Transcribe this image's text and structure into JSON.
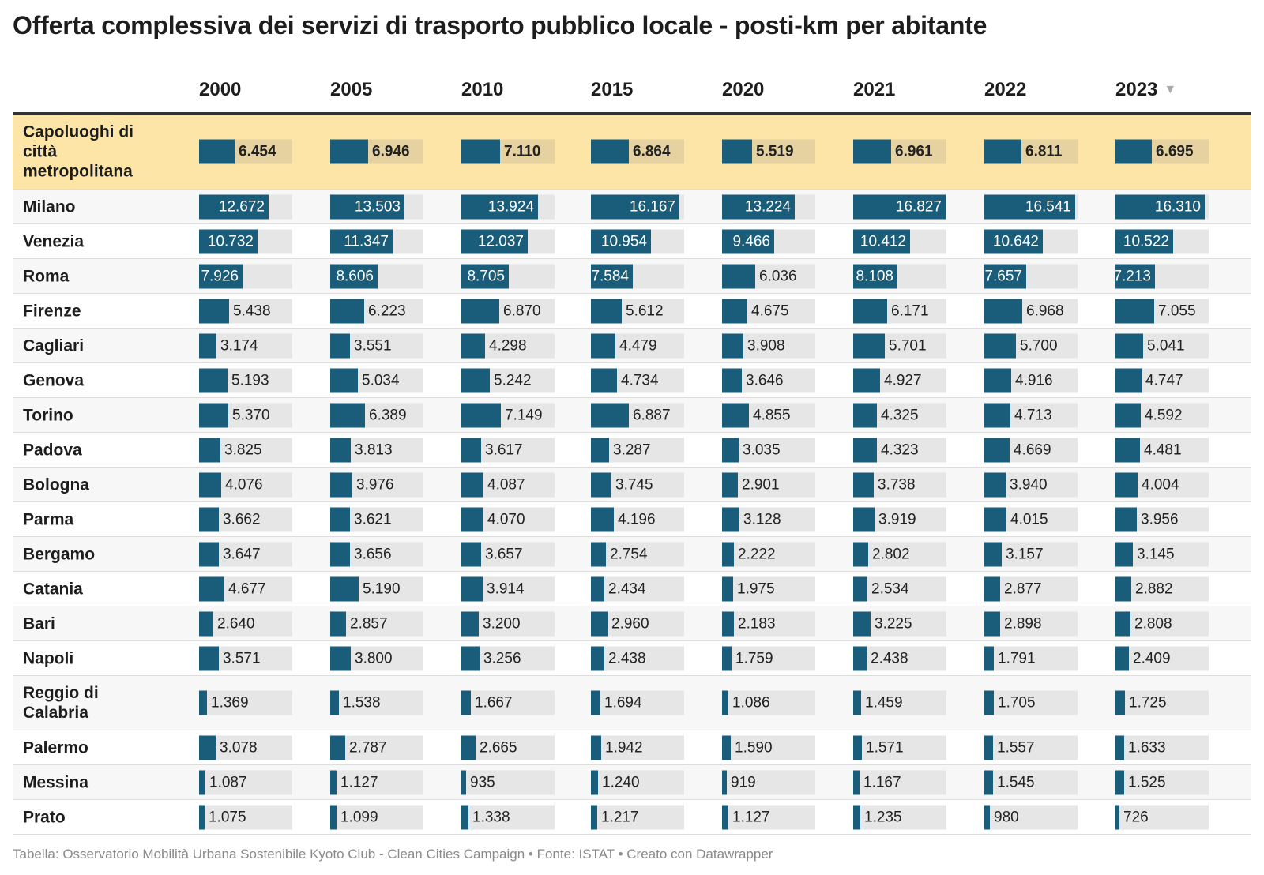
{
  "title": "Offerta complessiva dei servizi di trasporto pubblico locale - posti-km per abitante",
  "footer": "Tabella: Osservatorio Mobilità Urbana Sostenibile Kyoto Club - Clean Cities Campaign • Fonte: ISTAT • Creato con Datawrapper",
  "sort_icon": "▼",
  "colors": {
    "bar": "#1a5d7a",
    "track": "#e6e6e6",
    "highlight": "#fce5a6"
  },
  "chart_data": {
    "type": "table",
    "columns": [
      "2000",
      "2005",
      "2010",
      "2015",
      "2020",
      "2021",
      "2022",
      "2023"
    ],
    "sorted_by": "2023",
    "sort_direction": "descending",
    "bar_max": 17000,
    "rows": [
      {
        "label": "Capoluoghi di città metropolitana",
        "highlight": true,
        "values": [
          6454,
          6946,
          7110,
          6864,
          5519,
          6961,
          6811,
          6695
        ],
        "display": [
          "6.454",
          "6.946",
          "7.110",
          "6.864",
          "5.519",
          "6.961",
          "6.811",
          "6.695"
        ]
      },
      {
        "label": "Milano",
        "values": [
          12672,
          13503,
          13924,
          16167,
          13224,
          16827,
          16541,
          16310
        ],
        "display": [
          "12.672",
          "13.503",
          "13.924",
          "16.167",
          "13.224",
          "16.827",
          "16.541",
          "16.310"
        ]
      },
      {
        "label": "Venezia",
        "values": [
          10732,
          11347,
          12037,
          10954,
          9466,
          10412,
          10642,
          10522
        ],
        "display": [
          "10.732",
          "11.347",
          "12.037",
          "10.954",
          "9.466",
          "10.412",
          "10.642",
          "10.522"
        ]
      },
      {
        "label": "Roma",
        "values": [
          7926,
          8606,
          8705,
          7584,
          6036,
          8108,
          7657,
          7213
        ],
        "display": [
          "7.926",
          "8.606",
          "8.705",
          "7.584",
          "6.036",
          "8.108",
          "7.657",
          "7.213"
        ]
      },
      {
        "label": "Firenze",
        "values": [
          5438,
          6223,
          6870,
          5612,
          4675,
          6171,
          6968,
          7055
        ],
        "display": [
          "5.438",
          "6.223",
          "6.870",
          "5.612",
          "4.675",
          "6.171",
          "6.968",
          "7.055"
        ]
      },
      {
        "label": "Cagliari",
        "values": [
          3174,
          3551,
          4298,
          4479,
          3908,
          5701,
          5700,
          5041
        ],
        "display": [
          "3.174",
          "3.551",
          "4.298",
          "4.479",
          "3.908",
          "5.701",
          "5.700",
          "5.041"
        ]
      },
      {
        "label": "Genova",
        "values": [
          5193,
          5034,
          5242,
          4734,
          3646,
          4927,
          4916,
          4747
        ],
        "display": [
          "5.193",
          "5.034",
          "5.242",
          "4.734",
          "3.646",
          "4.927",
          "4.916",
          "4.747"
        ]
      },
      {
        "label": "Torino",
        "values": [
          5370,
          6389,
          7149,
          6887,
          4855,
          4325,
          4713,
          4592
        ],
        "display": [
          "5.370",
          "6.389",
          "7.149",
          "6.887",
          "4.855",
          "4.325",
          "4.713",
          "4.592"
        ]
      },
      {
        "label": "Padova",
        "values": [
          3825,
          3813,
          3617,
          3287,
          3035,
          4323,
          4669,
          4481
        ],
        "display": [
          "3.825",
          "3.813",
          "3.617",
          "3.287",
          "3.035",
          "4.323",
          "4.669",
          "4.481"
        ]
      },
      {
        "label": "Bologna",
        "values": [
          4076,
          3976,
          4087,
          3745,
          2901,
          3738,
          3940,
          4004
        ],
        "display": [
          "4.076",
          "3.976",
          "4.087",
          "3.745",
          "2.901",
          "3.738",
          "3.940",
          "4.004"
        ]
      },
      {
        "label": "Parma",
        "values": [
          3662,
          3621,
          4070,
          4196,
          3128,
          3919,
          4015,
          3956
        ],
        "display": [
          "3.662",
          "3.621",
          "4.070",
          "4.196",
          "3.128",
          "3.919",
          "4.015",
          "3.956"
        ]
      },
      {
        "label": "Bergamo",
        "values": [
          3647,
          3656,
          3657,
          2754,
          2222,
          2802,
          3157,
          3145
        ],
        "display": [
          "3.647",
          "3.656",
          "3.657",
          "2.754",
          "2.222",
          "2.802",
          "3.157",
          "3.145"
        ]
      },
      {
        "label": "Catania",
        "values": [
          4677,
          5190,
          3914,
          2434,
          1975,
          2534,
          2877,
          2882
        ],
        "display": [
          "4.677",
          "5.190",
          "3.914",
          "2.434",
          "1.975",
          "2.534",
          "2.877",
          "2.882"
        ]
      },
      {
        "label": "Bari",
        "values": [
          2640,
          2857,
          3200,
          2960,
          2183,
          3225,
          2898,
          2808
        ],
        "display": [
          "2.640",
          "2.857",
          "3.200",
          "2.960",
          "2.183",
          "3.225",
          "2.898",
          "2.808"
        ]
      },
      {
        "label": "Napoli",
        "values": [
          3571,
          3800,
          3256,
          2438,
          1759,
          2438,
          1791,
          2409
        ],
        "display": [
          "3.571",
          "3.800",
          "3.256",
          "2.438",
          "1.759",
          "2.438",
          "1.791",
          "2.409"
        ]
      },
      {
        "label": "Reggio di Calabria",
        "values": [
          1369,
          1538,
          1667,
          1694,
          1086,
          1459,
          1705,
          1725
        ],
        "display": [
          "1.369",
          "1.538",
          "1.667",
          "1.694",
          "1.086",
          "1.459",
          "1.705",
          "1.725"
        ]
      },
      {
        "label": "Palermo",
        "values": [
          3078,
          2787,
          2665,
          1942,
          1590,
          1571,
          1557,
          1633
        ],
        "display": [
          "3.078",
          "2.787",
          "2.665",
          "1.942",
          "1.590",
          "1.571",
          "1.557",
          "1.633"
        ]
      },
      {
        "label": "Messina",
        "values": [
          1087,
          1127,
          935,
          1240,
          919,
          1167,
          1545,
          1525
        ],
        "display": [
          "1.087",
          "1.127",
          "935",
          "1.240",
          "919",
          "1.167",
          "1.545",
          "1.525"
        ]
      },
      {
        "label": "Prato",
        "values": [
          1075,
          1099,
          1338,
          1217,
          1127,
          1235,
          980,
          726
        ],
        "display": [
          "1.075",
          "1.099",
          "1.338",
          "1.217",
          "1.127",
          "1.235",
          "980",
          "726"
        ]
      }
    ]
  }
}
